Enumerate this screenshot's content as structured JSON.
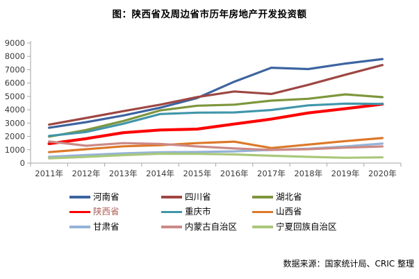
{
  "title": "图：陕西省及周边省市历年房地产开发投资额",
  "source_note": "数据来源：国家统计局、CRIC 整理",
  "colors": {
    "axis": "#A6A6A6",
    "tick_label": "#3A3A3A",
    "background": "#FFFFFF",
    "legend_highlight_label": "#B65E55"
  },
  "chart_data": {
    "type": "line",
    "title": "图：陕西省及周边省市历年房地产开发投资额",
    "xlabel": "",
    "ylabel": "",
    "ylim": [
      0,
      9000
    ],
    "y_ticks": [
      0,
      1000,
      2000,
      3000,
      4000,
      5000,
      6000,
      7000,
      8000,
      9000
    ],
    "grid": false,
    "legend_position": "bottom",
    "categories": [
      "2011年",
      "2012年",
      "2013年",
      "2014年",
      "2015年",
      "2016年",
      "2017年",
      "2018年",
      "2019年",
      "2020年"
    ],
    "series": [
      {
        "id": "henan",
        "name": "河南省",
        "color": "#3C64A0",
        "line_width": 3.2,
        "values": [
          2650,
          3070,
          3570,
          4150,
          4880,
          6100,
          7150,
          7050,
          7460,
          7800
        ]
      },
      {
        "id": "sichuan",
        "name": "四川省",
        "color": "#9E4742",
        "line_width": 3.2,
        "values": [
          2880,
          3380,
          3890,
          4380,
          4950,
          5370,
          5180,
          5870,
          6620,
          7350
        ]
      },
      {
        "id": "hubei",
        "name": "湖北省",
        "color": "#7D963C",
        "line_width": 3.2,
        "values": [
          1980,
          2480,
          3150,
          3950,
          4300,
          4380,
          4680,
          4820,
          5150,
          4940
        ]
      },
      {
        "id": "shaanxi",
        "name": "陕西省",
        "color": "#FE0000",
        "line_width": 4.2,
        "values": [
          1450,
          1830,
          2280,
          2480,
          2550,
          2930,
          3300,
          3760,
          4080,
          4420
        ]
      },
      {
        "id": "chongqing",
        "name": "重庆市",
        "color": "#4196AA",
        "line_width": 3.2,
        "values": [
          2040,
          2330,
          2950,
          3680,
          3780,
          3800,
          3980,
          4330,
          4460,
          4440
        ]
      },
      {
        "id": "shanxi",
        "name": "山西省",
        "color": "#DC7828",
        "line_width": 3.2,
        "values": [
          820,
          1040,
          1260,
          1340,
          1500,
          1610,
          1130,
          1390,
          1650,
          1880
        ]
      },
      {
        "id": "gansu",
        "name": "甘肃省",
        "color": "#95B3D7",
        "line_width": 3.2,
        "values": [
          470,
          610,
          730,
          815,
          830,
          880,
          990,
          1080,
          1250,
          1460
        ]
      },
      {
        "id": "neimenggu",
        "name": "内蒙古自治区",
        "color": "#CC8A87",
        "line_width": 3.2,
        "values": [
          1620,
          1300,
          1500,
          1440,
          1250,
          1100,
          990,
          1040,
          1160,
          1250
        ]
      },
      {
        "id": "ningxia",
        "name": "宁夏回族自治区",
        "color": "#A9C87A",
        "line_width": 3.2,
        "values": [
          360,
          470,
          600,
          700,
          690,
          650,
          550,
          470,
          400,
          430
        ]
      }
    ],
    "legend_order_row_major": [
      0,
      1,
      2,
      3,
      4,
      5,
      6,
      7,
      8
    ]
  }
}
